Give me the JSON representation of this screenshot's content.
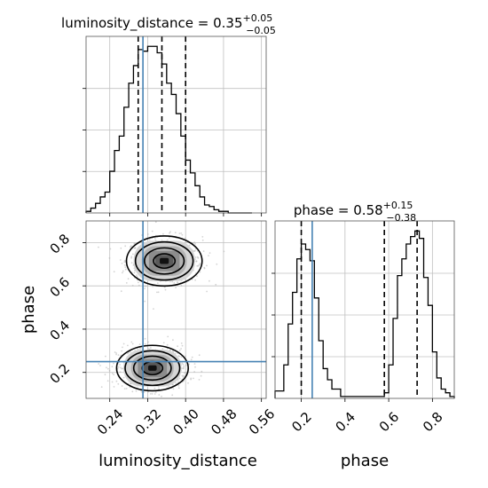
{
  "chart_data": [
    {
      "type": "histogram",
      "panel": "luminosity_distance marginal",
      "title": {
        "text": "luminosity_distance = 0.35",
        "sup": "+0.05",
        "sub": "−0.05"
      },
      "xlim": [
        0.19,
        0.57
      ],
      "xticks": [
        0.24,
        0.32,
        0.4,
        0.48,
        0.56
      ],
      "bin_edges": [
        0.19,
        0.2,
        0.21,
        0.22,
        0.23,
        0.24,
        0.25,
        0.26,
        0.27,
        0.28,
        0.29,
        0.3,
        0.31,
        0.32,
        0.33,
        0.34,
        0.35,
        0.36,
        0.37,
        0.38,
        0.39,
        0.4,
        0.41,
        0.42,
        0.43,
        0.44,
        0.45,
        0.46,
        0.47,
        0.48,
        0.49,
        0.5,
        0.51,
        0.52,
        0.53,
        0.54
      ],
      "counts": [
        1,
        3,
        6,
        10,
        13,
        26,
        39,
        48,
        66,
        81,
        92,
        102,
        101,
        104,
        104,
        100,
        93,
        81,
        74,
        62,
        48,
        33,
        25,
        17,
        10,
        5,
        4,
        2,
        1,
        1,
        0,
        0,
        0,
        0,
        0
      ],
      "quantiles": [
        0.3,
        0.35,
        0.4
      ],
      "truth": 0.31,
      "grid": true
    },
    {
      "type": "histogram",
      "panel": "phase marginal",
      "title": {
        "text": "phase = 0.58",
        "sup": "+0.15",
        "sub": "−0.38"
      },
      "xlim": [
        0.08,
        0.9
      ],
      "xticks": [
        0.2,
        0.4,
        0.6,
        0.8
      ],
      "xtick_labels": [
        "0.2",
        "0.4",
        "0.6",
        "0.8"
      ],
      "xlabel": "phase",
      "bin_edges": [
        0.08,
        0.1,
        0.12,
        0.14,
        0.16,
        0.18,
        0.2,
        0.22,
        0.24,
        0.26,
        0.28,
        0.3,
        0.32,
        0.34,
        0.36,
        0.38,
        0.4,
        0.42,
        0.44,
        0.46,
        0.48,
        0.5,
        0.52,
        0.54,
        0.56,
        0.58,
        0.6,
        0.62,
        0.64,
        0.66,
        0.68,
        0.7,
        0.72,
        0.74,
        0.76,
        0.78,
        0.8,
        0.82,
        0.84,
        0.86,
        0.88,
        0.9
      ],
      "counts": [
        4,
        4,
        18,
        40,
        57,
        75,
        83,
        80,
        74,
        54,
        31,
        16,
        10,
        5,
        5,
        1,
        1,
        1,
        1,
        1,
        1,
        1,
        1,
        1,
        1,
        3,
        18,
        43,
        66,
        75,
        83,
        87,
        90,
        86,
        65,
        50,
        25,
        11,
        5,
        3,
        1
      ],
      "quantiles": [
        0.2,
        0.58,
        0.73
      ],
      "truth": 0.25,
      "grid": true
    },
    {
      "type": "2d-histogram-contour",
      "panel": "luminosity_distance vs phase",
      "xlabel": "luminosity_distance",
      "ylabel": "phase",
      "xlim": [
        0.19,
        0.57
      ],
      "ylim": [
        0.08,
        0.9
      ],
      "xticks": [
        0.24,
        0.32,
        0.4,
        0.48,
        0.56
      ],
      "xtick_labels": [
        "0.24",
        "0.32",
        "0.40",
        "0.48",
        "0.56"
      ],
      "yticks": [
        0.2,
        0.4,
        0.6,
        0.8
      ],
      "ytick_labels": [
        "0.2",
        "0.4",
        "0.6",
        "0.8"
      ],
      "clusters": [
        {
          "center_x": 0.355,
          "center_y": 0.715,
          "sigma_x": 0.038,
          "sigma_y": 0.055
        },
        {
          "center_x": 0.33,
          "center_y": 0.22,
          "sigma_x": 0.036,
          "sigma_y": 0.05
        }
      ],
      "contour_levels_sigma": [
        0.6,
        1.1,
        1.6,
        2.1
      ],
      "truth": {
        "x": 0.31,
        "y": 0.25
      },
      "grid": true
    }
  ],
  "colors": {
    "truth": "#4682b4",
    "hist": "#000000",
    "grid": "#c0c0c0",
    "scatter": "#b0b0b0"
  }
}
